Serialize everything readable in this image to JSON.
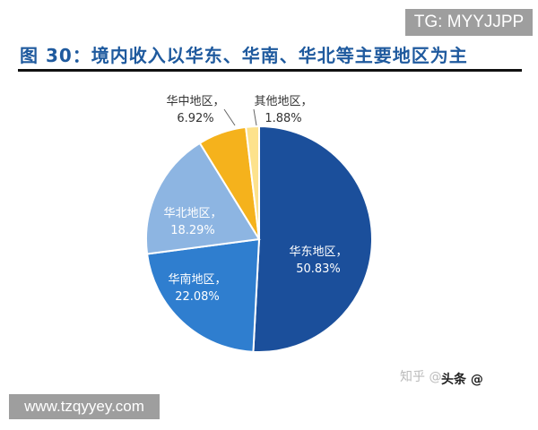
{
  "watermark_tg": "TG: MYYJJPP",
  "watermark_url": "www.tzqyyey.com",
  "watermark_zhihu": "知乎 @",
  "watermark_toutiao": "头条 @",
  "chart_data": {
    "type": "pie",
    "title": "图 30：境内收入以华东、华南、华北等主要地区为主",
    "start": "12 o'clock, clockwise",
    "slices": [
      {
        "name": "华东地区，",
        "value": 50.83,
        "label": "50.83%",
        "color": "#1b4f9b"
      },
      {
        "name": "华南地区，",
        "value": 22.08,
        "label": "22.08%",
        "color": "#2f7ecf"
      },
      {
        "name": "华北地区，",
        "value": 18.29,
        "label": "18.29%",
        "color": "#8db5e2"
      },
      {
        "name": "华中地区，",
        "value": 6.92,
        "label": "6.92%",
        "color": "#f5b21c"
      },
      {
        "name": "其他地区，",
        "value": 1.88,
        "label": "1.88%",
        "color": "#fde28c"
      }
    ]
  }
}
